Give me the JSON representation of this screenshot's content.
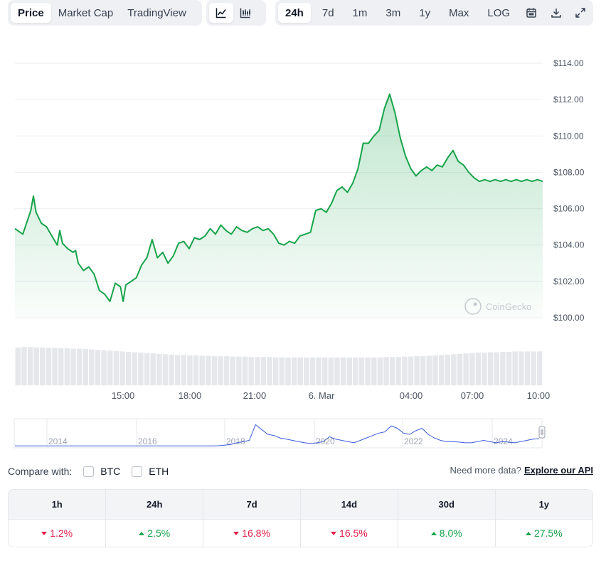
{
  "toolbar": {
    "view_tabs": [
      {
        "label": "Price",
        "active": true
      },
      {
        "label": "Market Cap",
        "active": false
      },
      {
        "label": "TradingView",
        "active": false
      }
    ],
    "chart_type_icons": [
      "line-chart-icon",
      "candlestick-chart-icon"
    ],
    "ranges": [
      {
        "label": "24h",
        "active": true
      },
      {
        "label": "7d",
        "active": false
      },
      {
        "label": "1m",
        "active": false
      },
      {
        "label": "3m",
        "active": false
      },
      {
        "label": "1y",
        "active": false
      },
      {
        "label": "Max",
        "active": false
      },
      {
        "label": "LOG",
        "active": false
      }
    ],
    "action_icons": [
      "calendar-icon",
      "download-icon",
      "expand-icon"
    ]
  },
  "watermark": "CoinGecko",
  "chart_data": [
    {
      "type": "area",
      "ylim": [
        100,
        114
      ],
      "y_ticks": [
        "$114.00",
        "$112.00",
        "$110.00",
        "$108.00",
        "$106.00",
        "$104.00",
        "$102.00",
        "$100.00"
      ],
      "x_tick_labels": [
        "15:00",
        "18:00",
        "21:00",
        "6. Mar",
        "04:00",
        "07:00",
        "10:00"
      ],
      "line_color": "#16a34a",
      "series": [
        {
          "x": [
            0,
            1.5,
            3,
            3.5,
            4,
            5,
            6,
            7,
            8,
            8.5,
            9,
            10,
            11,
            11.5,
            12,
            13,
            14,
            15,
            16,
            17,
            18,
            19,
            20,
            20.5,
            21,
            22,
            23,
            24,
            25,
            26,
            27,
            28,
            29,
            30,
            31,
            32,
            33,
            34,
            35,
            36,
            37,
            38,
            39,
            40,
            41,
            42,
            43,
            44,
            45,
            46,
            47,
            48,
            49,
            50,
            51,
            52,
            53,
            54,
            55,
            56,
            57,
            58,
            59,
            60,
            61,
            62,
            63,
            64,
            65,
            66,
            67,
            68,
            69,
            70,
            71,
            72,
            73,
            74,
            75,
            76,
            77,
            78,
            79,
            80,
            81,
            82,
            83,
            84,
            85,
            86,
            87,
            88,
            89,
            90,
            91,
            92,
            93,
            94,
            95,
            96,
            97,
            98,
            99,
            100
          ],
          "y": [
            104.9,
            104.6,
            105.9,
            106.7,
            105.8,
            105.2,
            105.0,
            104.5,
            104.0,
            104.8,
            104.1,
            103.8,
            103.6,
            103.7,
            103.0,
            102.6,
            102.8,
            102.4,
            101.5,
            101.3,
            100.9,
            101.9,
            101.7,
            100.9,
            101.8,
            102.0,
            102.2,
            102.9,
            103.3,
            104.3,
            103.3,
            103.6,
            103.0,
            103.4,
            104.1,
            104.2,
            103.8,
            104.4,
            104.3,
            104.5,
            104.9,
            104.6,
            105.1,
            104.8,
            104.6,
            105.0,
            104.8,
            104.7,
            104.9,
            105.0,
            104.8,
            104.9,
            104.6,
            104.1,
            104.0,
            104.2,
            104.1,
            104.5,
            104.6,
            104.7,
            105.9,
            106.0,
            105.8,
            106.3,
            107.0,
            107.2,
            106.9,
            107.4,
            108.2,
            109.6,
            109.6,
            110.0,
            110.3,
            111.5,
            112.3,
            111.3,
            109.9,
            108.9,
            108.2,
            107.8,
            108.1,
            108.3,
            108.1,
            108.4,
            108.3,
            108.8,
            109.2,
            108.6,
            108.4,
            108.0,
            107.7,
            107.5,
            107.6,
            107.5,
            107.6,
            107.5,
            107.6,
            107.5,
            107.6,
            107.5,
            107.6,
            107.5,
            107.6,
            107.5
          ]
        }
      ]
    },
    {
      "type": "bar",
      "bar_color": "#e5e7eb",
      "values": [
        0.95,
        0.96,
        0.96,
        0.95,
        0.95,
        0.94,
        0.94,
        0.93,
        0.93,
        0.92,
        0.92,
        0.91,
        0.9,
        0.89,
        0.88,
        0.87,
        0.86,
        0.85,
        0.84,
        0.83,
        0.82,
        0.81,
        0.8,
        0.79,
        0.78,
        0.77,
        0.76,
        0.76,
        0.75,
        0.75,
        0.74,
        0.74,
        0.73,
        0.73,
        0.73,
        0.72,
        0.72,
        0.72,
        0.71,
        0.71,
        0.71,
        0.71,
        0.7,
        0.7,
        0.7,
        0.7,
        0.7,
        0.7,
        0.7,
        0.7,
        0.7,
        0.7,
        0.7,
        0.7,
        0.7,
        0.7,
        0.7,
        0.7,
        0.7,
        0.7,
        0.71,
        0.71,
        0.71,
        0.72,
        0.72,
        0.73,
        0.73,
        0.74,
        0.75,
        0.76,
        0.77,
        0.78,
        0.79,
        0.8,
        0.81,
        0.82,
        0.82,
        0.83,
        0.83,
        0.84,
        0.84,
        0.85,
        0.85,
        0.85,
        0.85,
        0.85
      ]
    },
    {
      "type": "line",
      "x_tick_labels": [
        "2014",
        "2016",
        "2018",
        "2020",
        "2022",
        "2024"
      ],
      "line_color": "#3b5bdb",
      "values": [
        0.02,
        0.02,
        0.02,
        0.02,
        0.02,
        0.02,
        0.02,
        0.02,
        0.02,
        0.02,
        0.02,
        0.02,
        0.02,
        0.02,
        0.02,
        0.02,
        0.02,
        0.02,
        0.02,
        0.02,
        0.02,
        0.02,
        0.02,
        0.02,
        0.02,
        0.02,
        0.02,
        0.02,
        0.02,
        0.02,
        0.02,
        0.02,
        0.02,
        0.03,
        0.05,
        0.08,
        0.15,
        0.2,
        0.25,
        0.9,
        0.7,
        0.5,
        0.45,
        0.35,
        0.3,
        0.25,
        0.2,
        0.15,
        0.12,
        0.15,
        0.2,
        0.4,
        0.3,
        0.25,
        0.2,
        0.15,
        0.25,
        0.35,
        0.45,
        0.55,
        0.6,
        0.85,
        0.75,
        0.55,
        0.5,
        0.65,
        0.75,
        0.5,
        0.35,
        0.25,
        0.2,
        0.2,
        0.18,
        0.15,
        0.15,
        0.2,
        0.25,
        0.2,
        0.15,
        0.2,
        0.18,
        0.15,
        0.2,
        0.25,
        0.3,
        0.32
      ]
    }
  ],
  "compare": {
    "label": "Compare with:",
    "options": [
      "BTC",
      "ETH"
    ],
    "more_data_text": "Need more data?",
    "api_link": "Explore our API"
  },
  "performance": [
    {
      "period": "1h",
      "value": "1.2%",
      "direction": "down"
    },
    {
      "period": "24h",
      "value": "2.5%",
      "direction": "up"
    },
    {
      "period": "7d",
      "value": "16.8%",
      "direction": "down"
    },
    {
      "period": "14d",
      "value": "16.5%",
      "direction": "down"
    },
    {
      "period": "30d",
      "value": "8.0%",
      "direction": "up"
    },
    {
      "period": "1y",
      "value": "27.5%",
      "direction": "up"
    }
  ]
}
